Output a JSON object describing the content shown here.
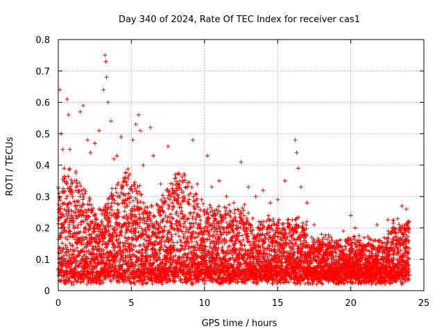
{
  "chart_data": {
    "type": "scatter",
    "title": "Day 340 of 2024, Rate Of TEC Index for receiver cas1",
    "xlabel": "GPS time / hours",
    "ylabel": "ROTI / TECUs",
    "xlim": [
      0,
      25
    ],
    "ylim": [
      0,
      0.8
    ],
    "x_ticks": [
      "0",
      "5",
      "10",
      "15",
      "20",
      "25"
    ],
    "y_ticks": [
      "0",
      "0.1",
      "0.2",
      "0.3",
      "0.4",
      "0.5",
      "0.6",
      "0.7",
      "0.8"
    ],
    "grid": true,
    "marker": "plus",
    "color": "#ff0000",
    "x_range_of_data": [
      0,
      24
    ],
    "series": [
      {
        "points": [
          [
            0.0,
            0.33
          ],
          [
            0.1,
            0.64
          ],
          [
            0.2,
            0.5
          ],
          [
            0.3,
            0.45
          ],
          [
            0.4,
            0.39
          ],
          [
            0.6,
            0.61
          ],
          [
            0.7,
            0.56
          ],
          [
            0.8,
            0.45
          ],
          [
            1.2,
            0.38
          ],
          [
            1.5,
            0.57
          ],
          [
            1.7,
            0.59
          ],
          [
            2.0,
            0.48
          ],
          [
            2.2,
            0.44
          ],
          [
            2.5,
            0.47
          ],
          [
            2.8,
            0.51
          ],
          [
            3.1,
            0.64
          ],
          [
            3.2,
            0.75
          ],
          [
            3.25,
            0.73
          ],
          [
            3.3,
            0.68
          ],
          [
            3.4,
            0.6
          ],
          [
            3.6,
            0.54
          ],
          [
            3.8,
            0.42
          ],
          [
            4.0,
            0.43
          ],
          [
            4.3,
            0.49
          ],
          [
            4.5,
            0.36
          ],
          [
            4.8,
            0.31
          ],
          [
            5.1,
            0.48
          ],
          [
            5.3,
            0.53
          ],
          [
            5.5,
            0.56
          ],
          [
            5.6,
            0.51
          ],
          [
            5.8,
            0.4
          ],
          [
            6.3,
            0.52
          ],
          [
            6.5,
            0.43
          ],
          [
            7.0,
            0.34
          ],
          [
            7.5,
            0.46
          ],
          [
            8.0,
            0.37
          ],
          [
            8.3,
            0.35
          ],
          [
            8.7,
            0.33
          ],
          [
            9.2,
            0.48
          ],
          [
            9.5,
            0.34
          ],
          [
            9.8,
            0.29
          ],
          [
            10.2,
            0.43
          ],
          [
            10.5,
            0.33
          ],
          [
            11.0,
            0.35
          ],
          [
            11.5,
            0.3
          ],
          [
            12.0,
            0.28
          ],
          [
            12.5,
            0.41
          ],
          [
            13.0,
            0.33
          ],
          [
            13.5,
            0.3
          ],
          [
            14.0,
            0.32
          ],
          [
            14.5,
            0.28
          ],
          [
            15.0,
            0.29
          ],
          [
            15.5,
            0.35
          ],
          [
            16.2,
            0.48
          ],
          [
            16.3,
            0.44
          ],
          [
            16.4,
            0.39
          ],
          [
            16.6,
            0.33
          ],
          [
            17.0,
            0.28
          ],
          [
            17.5,
            0.21
          ],
          [
            18.0,
            0.18
          ],
          [
            18.5,
            0.17
          ],
          [
            19.0,
            0.15
          ],
          [
            19.5,
            0.19
          ],
          [
            20.0,
            0.24
          ],
          [
            20.3,
            0.2
          ],
          [
            20.5,
            0.16
          ],
          [
            21.0,
            0.14
          ],
          [
            21.8,
            0.21
          ],
          [
            22.5,
            0.15
          ],
          [
            23.0,
            0.2
          ],
          [
            23.5,
            0.27
          ],
          [
            23.8,
            0.26
          ],
          [
            24.0,
            0.22
          ]
        ]
      }
    ]
  }
}
